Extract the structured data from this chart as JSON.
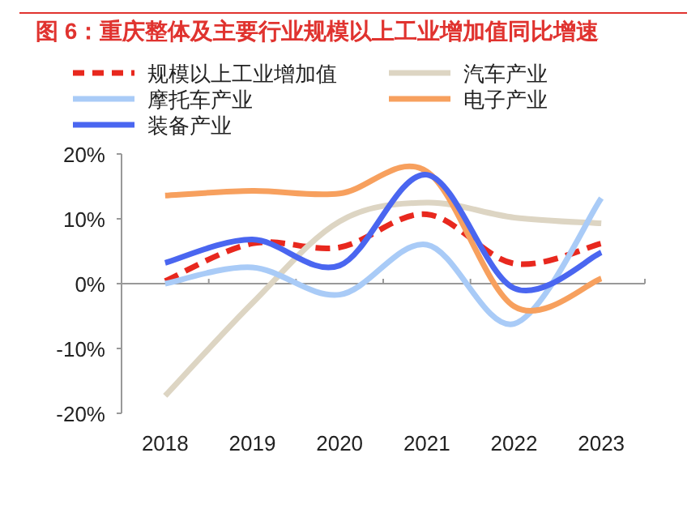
{
  "chart_data": {
    "type": "line",
    "title": "图 6：重庆整体及主要行业规模以上工业增加值同比增速",
    "categories": [
      "2018",
      "2019",
      "2020",
      "2021",
      "2022",
      "2023"
    ],
    "series": [
      {
        "name": "规模以上工业增加值",
        "color": "#e8281e",
        "line_style": "dashed",
        "values": [
          0.4,
          6.2,
          5.6,
          10.7,
          3.1,
          6.2
        ]
      },
      {
        "name": "汽车产业",
        "color": "#ddd5c3",
        "values": [
          -17.3,
          -3,
          9.6,
          12.5,
          10.2,
          9.3
        ]
      },
      {
        "name": "摩托车产业",
        "color": "#a9cbf7",
        "values": [
          0,
          2.5,
          -1.7,
          6,
          -6.2,
          13.2
        ]
      },
      {
        "name": "电子产业",
        "color": "#f7a05e",
        "values": [
          13.6,
          14.3,
          13.9,
          17.3,
          -3.5,
          0.8
        ]
      },
      {
        "name": "装备产业",
        "color": "#4a66f0",
        "values": [
          3.2,
          6.8,
          2.8,
          16.8,
          -0.7,
          4.8
        ]
      }
    ],
    "ylim": [
      -20,
      20
    ],
    "yticks": [
      {
        "value": -20,
        "label": "-20%"
      },
      {
        "value": -10,
        "label": "-10%"
      },
      {
        "value": 0,
        "label": "0%"
      },
      {
        "value": 10,
        "label": "10%"
      },
      {
        "value": 20,
        "label": "20%"
      }
    ],
    "ref_lines": [
      {
        "axis": "y",
        "value": 0,
        "color": "#999999"
      }
    ],
    "legend": "top",
    "grid": false,
    "marker": "none",
    "line_style": "solid"
  }
}
